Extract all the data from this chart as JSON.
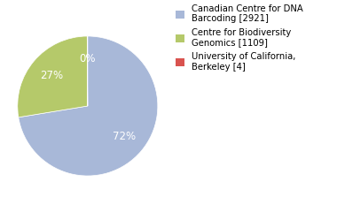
{
  "slices": [
    2921,
    1109,
    4
  ],
  "colors": [
    "#a8b8d8",
    "#b5c96a",
    "#d9534f"
  ],
  "startangle": 90,
  "counterclock": false,
  "legend_labels": [
    "Canadian Centre for DNA\nBarcoding [2921]",
    "Centre for Biodiversity\nGenomics [1109]",
    "University of California,\nBerkeley [4]"
  ],
  "background_color": "#ffffff",
  "text_color": "#ffffff",
  "pct_fontsize": 8.5,
  "legend_fontsize": 7.2,
  "pctdistance": 0.68
}
